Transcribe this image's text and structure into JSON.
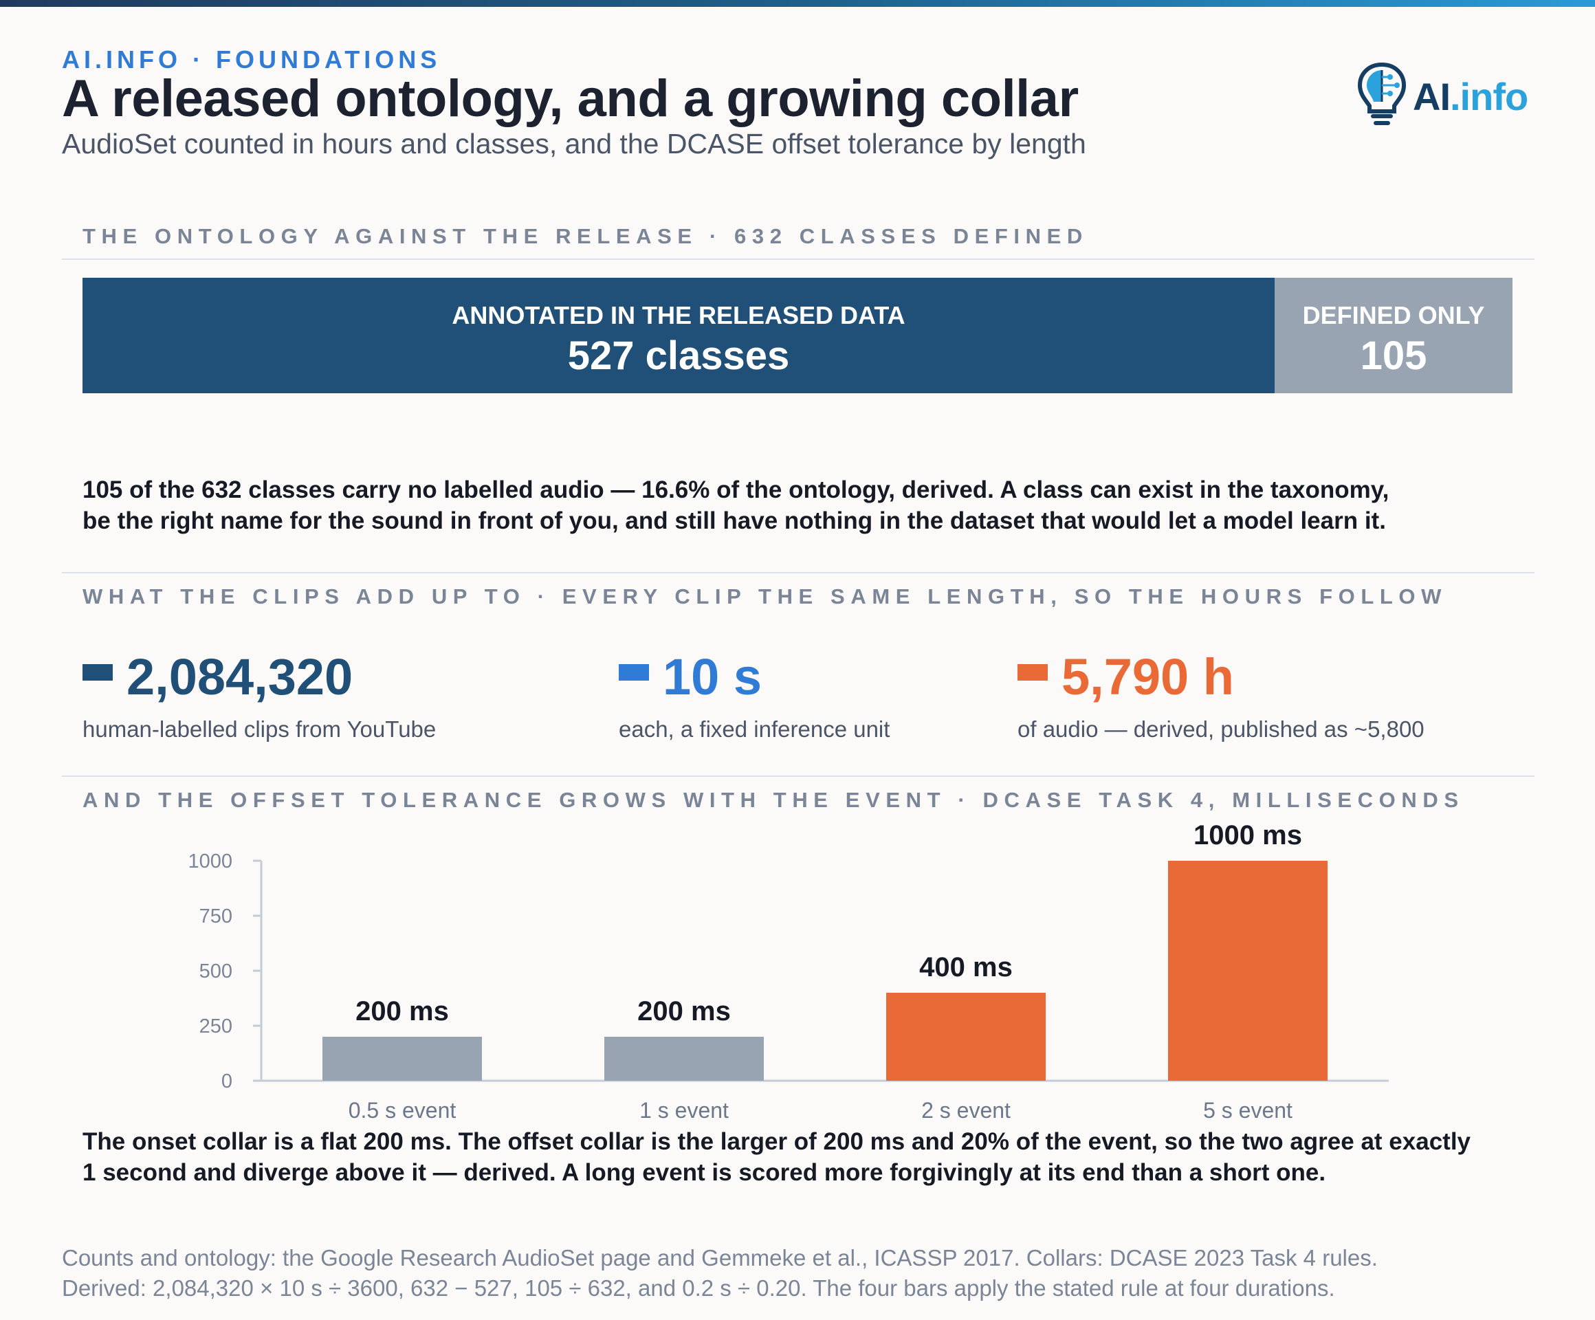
{
  "header": {
    "kicker": "AI.INFO · FOUNDATIONS",
    "title": "A released ontology, and a growing collar",
    "subtitle": "AudioSet counted in hours and classes, and the DCASE offset tolerance by length",
    "logo_ai": "AI",
    "logo_info": ".info"
  },
  "section1": {
    "label": "THE ONTOLOGY AGAINST THE RELEASE · 632 CLASSES DEFINED",
    "released_caption": "ANNOTATED IN THE RELEASED DATA",
    "released_value": "527 classes",
    "defined_caption": "DEFINED ONLY",
    "defined_value": "105",
    "paragraph_line1": "105 of the 632 classes carry no labelled audio — 16.6% of the ontology, derived. A class can exist in the taxonomy,",
    "paragraph_line2": "be the right name for the sound in front of you, and still have nothing in the dataset that would let a model learn it."
  },
  "section2": {
    "label": "WHAT THE CLIPS ADD UP TO · EVERY CLIP THE SAME LENGTH, SO THE HOURS FOLLOW",
    "stats": [
      {
        "value": "2,084,320",
        "desc": "human-labelled clips from YouTube",
        "color": "#204f78"
      },
      {
        "value": "10 s",
        "desc": "each, a fixed inference unit",
        "color": "#2f7bd6"
      },
      {
        "value": "5,790 h",
        "desc": "of audio — derived, published as ~5,800",
        "color": "#e96a37"
      }
    ]
  },
  "section3": {
    "label": "AND THE OFFSET TOLERANCE GROWS WITH THE EVENT · DCASE TASK 4, MILLISECONDS",
    "paragraph_line1": "The onset collar is a flat 200 ms. The offset collar is the larger of 200 ms and 20% of the event, so the two agree at exactly",
    "paragraph_line2": "1 second and diverge above it — derived. A long event is scored more forgivingly at its end than a short one."
  },
  "chart_data": {
    "type": "bar",
    "categories": [
      "0.5 s event",
      "1 s event",
      "2 s event",
      "5 s event"
    ],
    "values": [
      200,
      200,
      400,
      1000
    ],
    "data_labels": [
      "200 ms",
      "200 ms",
      "400 ms",
      "1000 ms"
    ],
    "bar_colors": [
      "#98a4b2",
      "#98a4b2",
      "#e96a37",
      "#e96a37"
    ],
    "yticks": [
      0,
      250,
      500,
      750,
      1000
    ],
    "ylim": [
      0,
      1000
    ],
    "grid": false
  },
  "footer": {
    "line1": "Counts and ontology: the Google Research AudioSet page and Gemmeke et al., ICASSP 2017. Collars: DCASE 2023 Task 4 rules.",
    "line2": "Derived: 2,084,320 × 10 s ÷ 3600, 632 − 527, 105 ÷ 632, and 0.2 s ÷ 0.20. The four bars apply the stated rule at four durations."
  }
}
